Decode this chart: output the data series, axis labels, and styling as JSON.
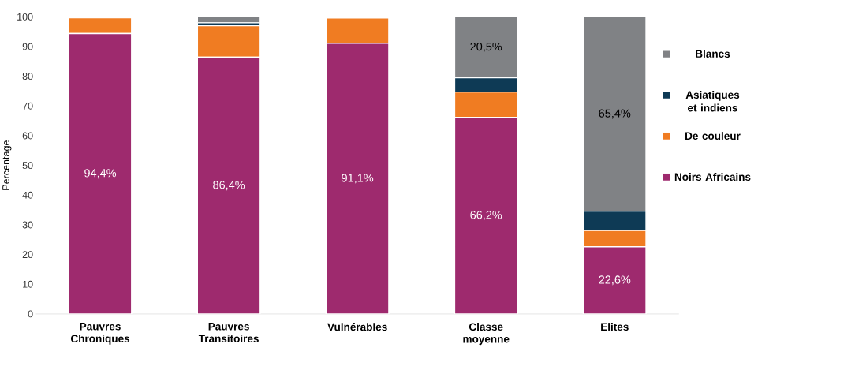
{
  "chart_data": {
    "type": "bar",
    "stacked": true,
    "ylabel": "Percentage",
    "categories": [
      "Pauvres Chroniques",
      "Pauvres Transitoires",
      "Vulnérables",
      "Classe moyenne",
      "Elites"
    ],
    "series": [
      {
        "name": "Noirs Africains",
        "color": "#9e2a6e",
        "values": [
          94.4,
          86.4,
          91.1,
          66.2,
          22.6
        ],
        "value_labels": [
          "94,4%",
          "86,4%",
          "91,1%",
          "66,2%",
          "22,6%"
        ]
      },
      {
        "name": "De couleur",
        "color": "#f07c22",
        "values": [
          5.3,
          10.6,
          8.5,
          8.5,
          5.5
        ],
        "value_labels": [
          null,
          null,
          null,
          null,
          null
        ]
      },
      {
        "name": "Asiatiques et indiens",
        "color": "#0e3a55",
        "values": [
          null,
          1.0,
          null,
          4.8,
          6.5
        ],
        "value_labels": [
          null,
          null,
          null,
          null,
          null
        ]
      },
      {
        "name": "Blancs",
        "color": "#808285",
        "values": [
          null,
          2.0,
          null,
          20.5,
          65.4
        ],
        "value_labels": [
          null,
          null,
          null,
          "20,5%",
          "65,4%"
        ]
      }
    ],
    "ylim": [
      0,
      100
    ],
    "yticks": [
      0,
      10,
      20,
      30,
      40,
      50,
      60,
      70,
      80,
      90,
      100
    ],
    "grid": false,
    "legend": "right"
  }
}
